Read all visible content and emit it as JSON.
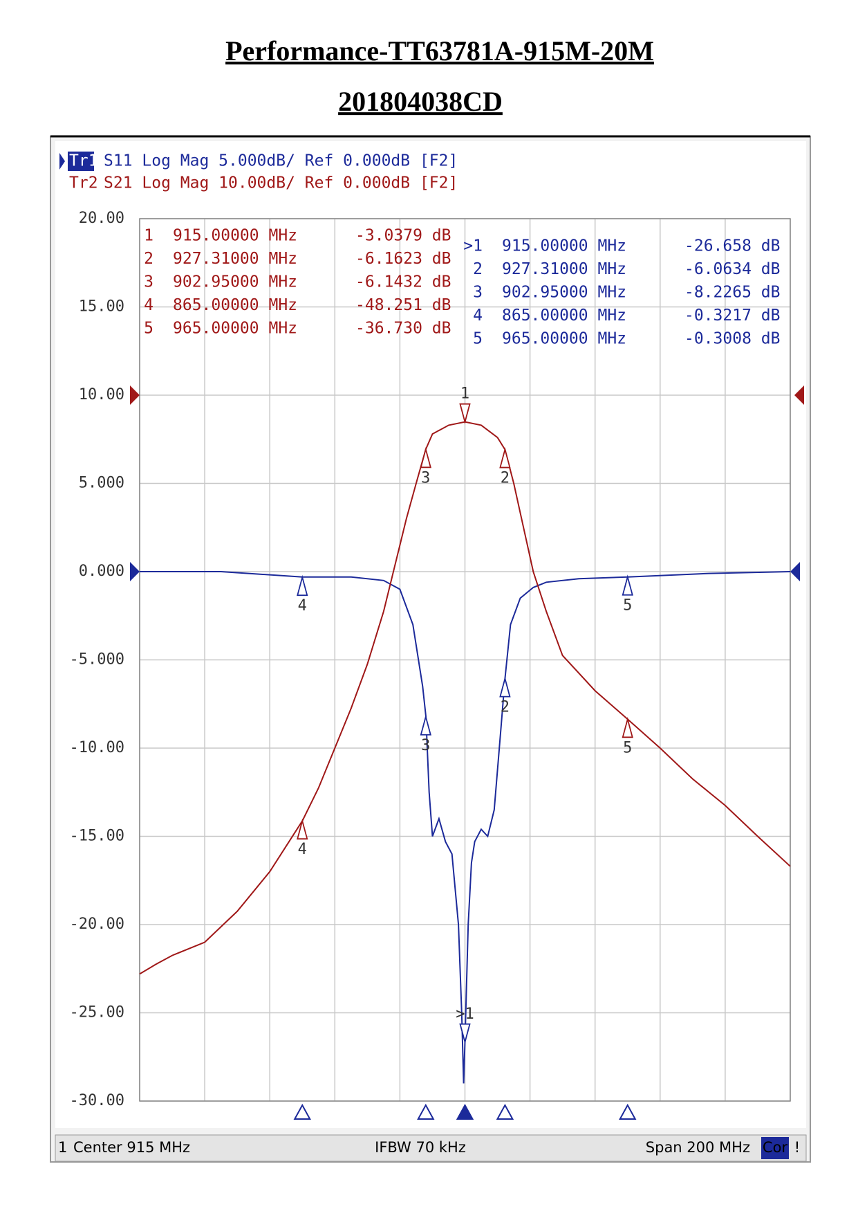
{
  "title": "Performance-TT63781A-915M-20M",
  "subtitle": "201804038CD",
  "chart_data": {
    "type": "line",
    "header": [
      {
        "id": "Tr1",
        "text": "S11 Log Mag 5.000dB/ Ref 0.000dB [F2]",
        "color": "#1c2a9a"
      },
      {
        "id": "Tr2",
        "text": "S21 Log Mag 10.00dB/ Ref 0.000dB [F2]",
        "color": "#a01818"
      }
    ],
    "xlim": [
      815,
      1015
    ],
    "xticks": [
      815,
      835,
      855,
      875,
      895,
      915,
      935,
      955,
      975,
      995,
      1015
    ],
    "ylim": [
      -30,
      20
    ],
    "yticks": [
      {
        "value": 20,
        "label": "20.00"
      },
      {
        "value": 15,
        "label": "15.00"
      },
      {
        "value": 10,
        "label": "10.00"
      },
      {
        "value": 5,
        "label": "5.000"
      },
      {
        "value": 0,
        "label": "0.000"
      },
      {
        "value": -5,
        "label": "-5.000"
      },
      {
        "value": -10,
        "label": "-10.00"
      },
      {
        "value": -15,
        "label": "-15.00"
      },
      {
        "value": -20,
        "label": "-20.00"
      },
      {
        "value": -25,
        "label": "-25.00"
      },
      {
        "value": -30,
        "label": "-30.00"
      }
    ],
    "y2lim": [
      -80,
      20
    ],
    "grid": true,
    "series": [
      {
        "name": "S11",
        "color": "#1c2a9a",
        "x": [
          815,
          840,
          865,
          880,
          890,
          895,
          899,
          902,
          903,
          904,
          905,
          907,
          909,
          911,
          913,
          914,
          914.6,
          915,
          916,
          917,
          918,
          920,
          922,
          924,
          926,
          927.3,
          929,
          932,
          936,
          940,
          950,
          965,
          990,
          1015
        ],
        "values": [
          0,
          0,
          -0.3,
          -0.3,
          -0.5,
          -1.0,
          -3.0,
          -6.5,
          -8.2,
          -12.5,
          -15.0,
          -14.0,
          -15.3,
          -16.0,
          -20.0,
          -25.0,
          -29.0,
          -26.658,
          -20.0,
          -16.5,
          -15.3,
          -14.6,
          -15.0,
          -13.5,
          -9.0,
          -6.0634,
          -3.0,
          -1.5,
          -0.9,
          -0.6,
          -0.4,
          -0.3008,
          -0.1,
          0
        ]
      },
      {
        "name": "S21",
        "color": "#a01818",
        "axis": "y2",
        "x": [
          815,
          820,
          825,
          835,
          845,
          855,
          865,
          870,
          875,
          880,
          885,
          890,
          893,
          897,
          900,
          902.95,
          905,
          910,
          915,
          920,
          925,
          927.31,
          930,
          933,
          936,
          940,
          945,
          955,
          965,
          975,
          985,
          995,
          1005,
          1015
        ],
        "values": [
          -65.6,
          -64.5,
          -63.5,
          -62,
          -58.5,
          -54,
          -48.251,
          -44.5,
          -40,
          -35.5,
          -30.5,
          -24.5,
          -20,
          -14,
          -10,
          -6.1432,
          -4.4,
          -3.4,
          -3.0379,
          -3.4,
          -4.8,
          -6.1623,
          -10,
          -15,
          -20,
          -24.5,
          -29.5,
          -33.5,
          -36.73,
          -40,
          -43.5,
          -46.5,
          -50,
          -53.4
        ]
      }
    ],
    "markers": [
      [
        {
          "n": "1",
          "x": 915,
          "x_label": "915.00000 MHz",
          "value": -3.0379,
          "value_label": "-3.0379 dB"
        },
        {
          "n": "2",
          "x": 927.31,
          "x_label": "927.31000 MHz",
          "value": -6.1623,
          "value_label": "-6.1623 dB"
        },
        {
          "n": "3",
          "x": 902.95,
          "x_label": "902.95000 MHz",
          "value": -6.1432,
          "value_label": "-6.1432 dB"
        },
        {
          "n": "4",
          "x": 865,
          "x_label": "865.00000 MHz",
          "value": -48.251,
          "value_label": "-48.251 dB"
        },
        {
          "n": "5",
          "x": 965,
          "x_label": "965.00000 MHz",
          "value": -36.73,
          "value_label": "-36.730 dB"
        }
      ],
      [
        {
          "n": ">1",
          "x": 915,
          "x_label": "915.00000 MHz",
          "value": -26.658,
          "value_label": "-26.658 dB"
        },
        {
          "n": "2",
          "x": 927.31,
          "x_label": "927.31000 MHz",
          "value": -6.0634,
          "value_label": "-6.0634 dB"
        },
        {
          "n": "3",
          "x": 902.95,
          "x_label": "902.95000 MHz",
          "value": -8.2265,
          "value_label": "-8.2265 dB"
        },
        {
          "n": "4",
          "x": 865,
          "x_label": "865.00000 MHz",
          "value": -0.3217,
          "value_label": "-0.3217 dB"
        },
        {
          "n": "5",
          "x": 965,
          "x_label": "965.00000 MHz",
          "value": -0.3008,
          "value_label": "-0.3008 dB"
        }
      ]
    ],
    "status": {
      "channel": "1",
      "center": "Center 915 MHz",
      "ifbw": "IFBW 70 kHz",
      "span": "Span 200 MHz",
      "cor": "Cor",
      "flag": "!"
    }
  }
}
